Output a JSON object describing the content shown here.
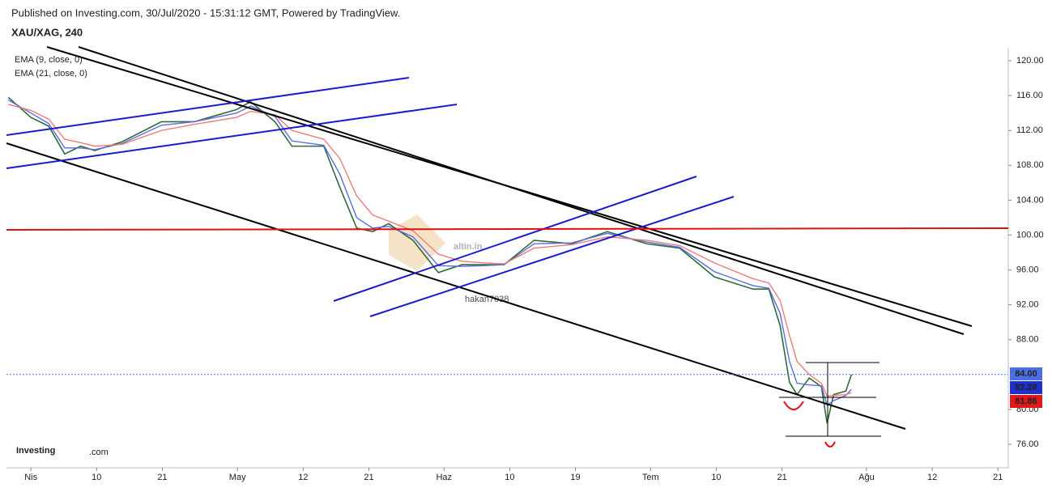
{
  "header": {
    "published": "Published on Investing.com, 30/Jul/2020 - 15:31:12 GMT, Powered by TradingView.",
    "symbol": "XAU/XAG, 240"
  },
  "watermarks": {
    "user": "hakan7038",
    "site": "altin.in",
    "brand": "Investing",
    "brand_suffix": ".com"
  },
  "chart_data": {
    "type": "line",
    "x": [
      -2.4,
      0,
      1.9,
      3.6,
      5.3,
      6.8,
      9.7,
      13.9,
      17.4,
      21.9,
      23.4,
      26,
      27.8,
      31.2,
      32.9,
      34.7,
      36.4,
      38.1,
      40.7,
      43.4,
      45.9,
      48.4,
      50.4,
      53.6,
      57.6,
      61.4,
      65.6,
      69.1,
      72.8,
      76.9,
      78.6,
      79.8,
      80.8,
      81.6,
      82.9,
      84.2,
      84.8,
      85.5,
      86.8,
      87.4
    ],
    "series": [
      {
        "name": "XAU/XAG",
        "color": "#2f6b3a",
        "values": [
          115.8,
          113.5,
          112.5,
          109.3,
          110.2,
          109.7,
          110.7,
          113,
          113,
          114.4,
          115.3,
          113,
          110.2,
          110.2,
          105.5,
          100.8,
          100.4,
          101.3,
          99.4,
          95.7,
          96.6,
          96.6,
          96.6,
          99.4,
          99,
          100.4,
          99,
          98.5,
          95.2,
          93.8,
          93.8,
          89.6,
          83.1,
          81.7,
          83.6,
          82.6,
          78.4,
          81.7,
          82.1,
          84
        ]
      },
      {
        "name": "EMA (9, close, 0)",
        "color": "#5b6be0",
        "values": [
          115.5,
          114,
          112.8,
          110,
          110,
          109.8,
          110.5,
          112.6,
          113,
          114,
          114.8,
          113.6,
          110.8,
          110.3,
          107,
          102,
          100.8,
          101,
          99.8,
          96.5,
          96.4,
          96.5,
          96.6,
          99,
          99.1,
          100.2,
          99.2,
          98.6,
          95.8,
          94.2,
          93.9,
          91,
          85.5,
          83,
          82.8,
          82.7,
          80.5,
          81,
          81.6,
          82.3
        ]
      },
      {
        "name": "EMA (21, close, 0)",
        "color": "#f07b7b",
        "values": [
          115,
          114.3,
          113.3,
          111,
          110.6,
          110.2,
          110.4,
          112,
          112.7,
          113.5,
          114.2,
          113.8,
          112,
          111,
          108.8,
          104.5,
          102.3,
          101.6,
          100.5,
          97.8,
          97,
          96.8,
          96.7,
          98.5,
          98.9,
          99.8,
          99.4,
          98.8,
          96.8,
          95,
          94.5,
          92.5,
          88.5,
          85.5,
          84,
          83,
          81.5,
          81.6,
          81.7,
          81.9
        ]
      }
    ],
    "xlim": [
      -2.6,
      104.1
    ],
    "xticks": [
      {
        "value": 0,
        "label": "Nis"
      },
      {
        "value": 7,
        "label": "10"
      },
      {
        "value": 14,
        "label": "21"
      },
      {
        "value": 22,
        "label": "May"
      },
      {
        "value": 29,
        "label": "12"
      },
      {
        "value": 36,
        "label": "21"
      },
      {
        "value": 44,
        "label": "Haz"
      },
      {
        "value": 51,
        "label": "10"
      },
      {
        "value": 58,
        "label": "19"
      },
      {
        "value": 66,
        "label": "Tem"
      },
      {
        "value": 73,
        "label": "10"
      },
      {
        "value": 80,
        "label": "21"
      },
      {
        "value": 89,
        "label": "Ağu"
      },
      {
        "value": 96,
        "label": "12"
      },
      {
        "value": 103,
        "label": "21"
      }
    ],
    "ylim": [
      73.3,
      121.4
    ],
    "yticks": [
      {
        "value": 76,
        "label": "76.00"
      },
      {
        "value": 80,
        "label": "80.00"
      },
      {
        "value": 88,
        "label": "88.00"
      },
      {
        "value": 92,
        "label": "92.00"
      },
      {
        "value": 96,
        "label": "96.00"
      },
      {
        "value": 100,
        "label": "100.00"
      },
      {
        "value": 104,
        "label": "104.00"
      },
      {
        "value": 108,
        "label": "108.00"
      },
      {
        "value": 112,
        "label": "112.00"
      },
      {
        "value": 116,
        "label": "116.00"
      },
      {
        "value": 120,
        "label": "120.00"
      }
    ],
    "price_labels": [
      {
        "value": 84,
        "label": "84.00",
        "color": "#4a6fe0"
      },
      {
        "value": 82.28,
        "label": "82.28",
        "color": "#1f2fd0"
      },
      {
        "value": 81.86,
        "label": "81.86",
        "color": "#e01818"
      }
    ]
  }
}
